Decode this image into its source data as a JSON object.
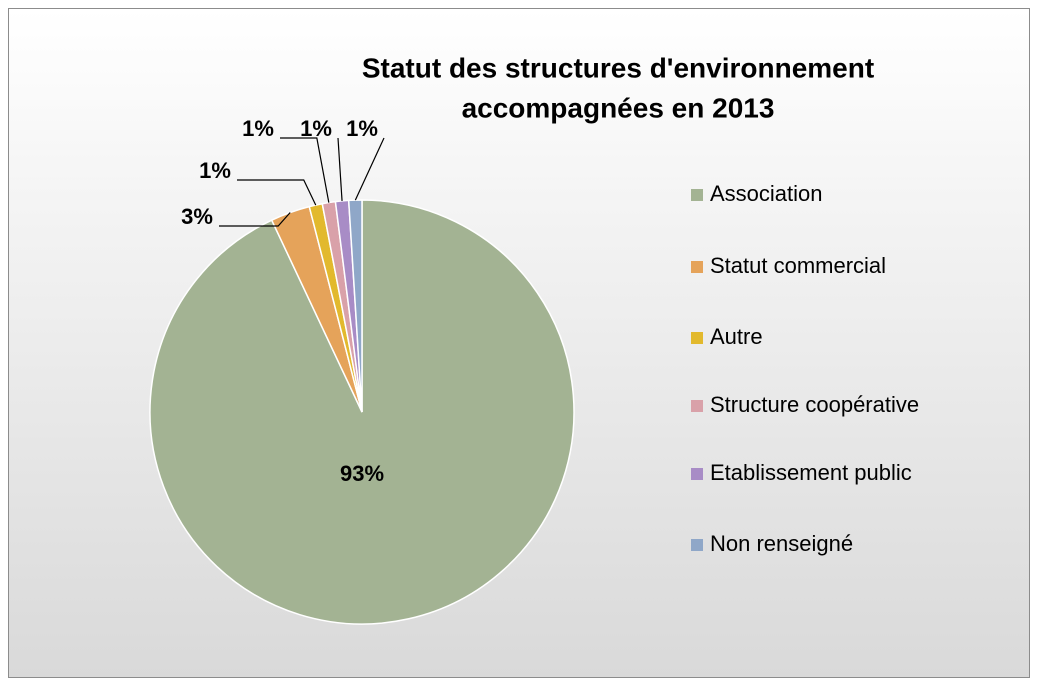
{
  "chart_data": {
    "type": "pie",
    "title": [
      "Statut des structures d'environnement",
      "accompagnées en 2013"
    ],
    "categories": [
      "Association",
      "Statut commercial",
      "Autre",
      "Structure coopérative",
      "Etablissement public",
      "Non renseigné"
    ],
    "values": [
      93,
      3,
      1,
      1,
      1,
      1
    ],
    "value_labels": [
      "93%",
      "3%",
      "1%",
      "1%",
      "1%",
      "1%"
    ],
    "colors": [
      "#a3b393",
      "#e5a35a",
      "#e2b92d",
      "#d9a1a9",
      "#a88cc6",
      "#8fa7c8"
    ],
    "legend": "right"
  }
}
